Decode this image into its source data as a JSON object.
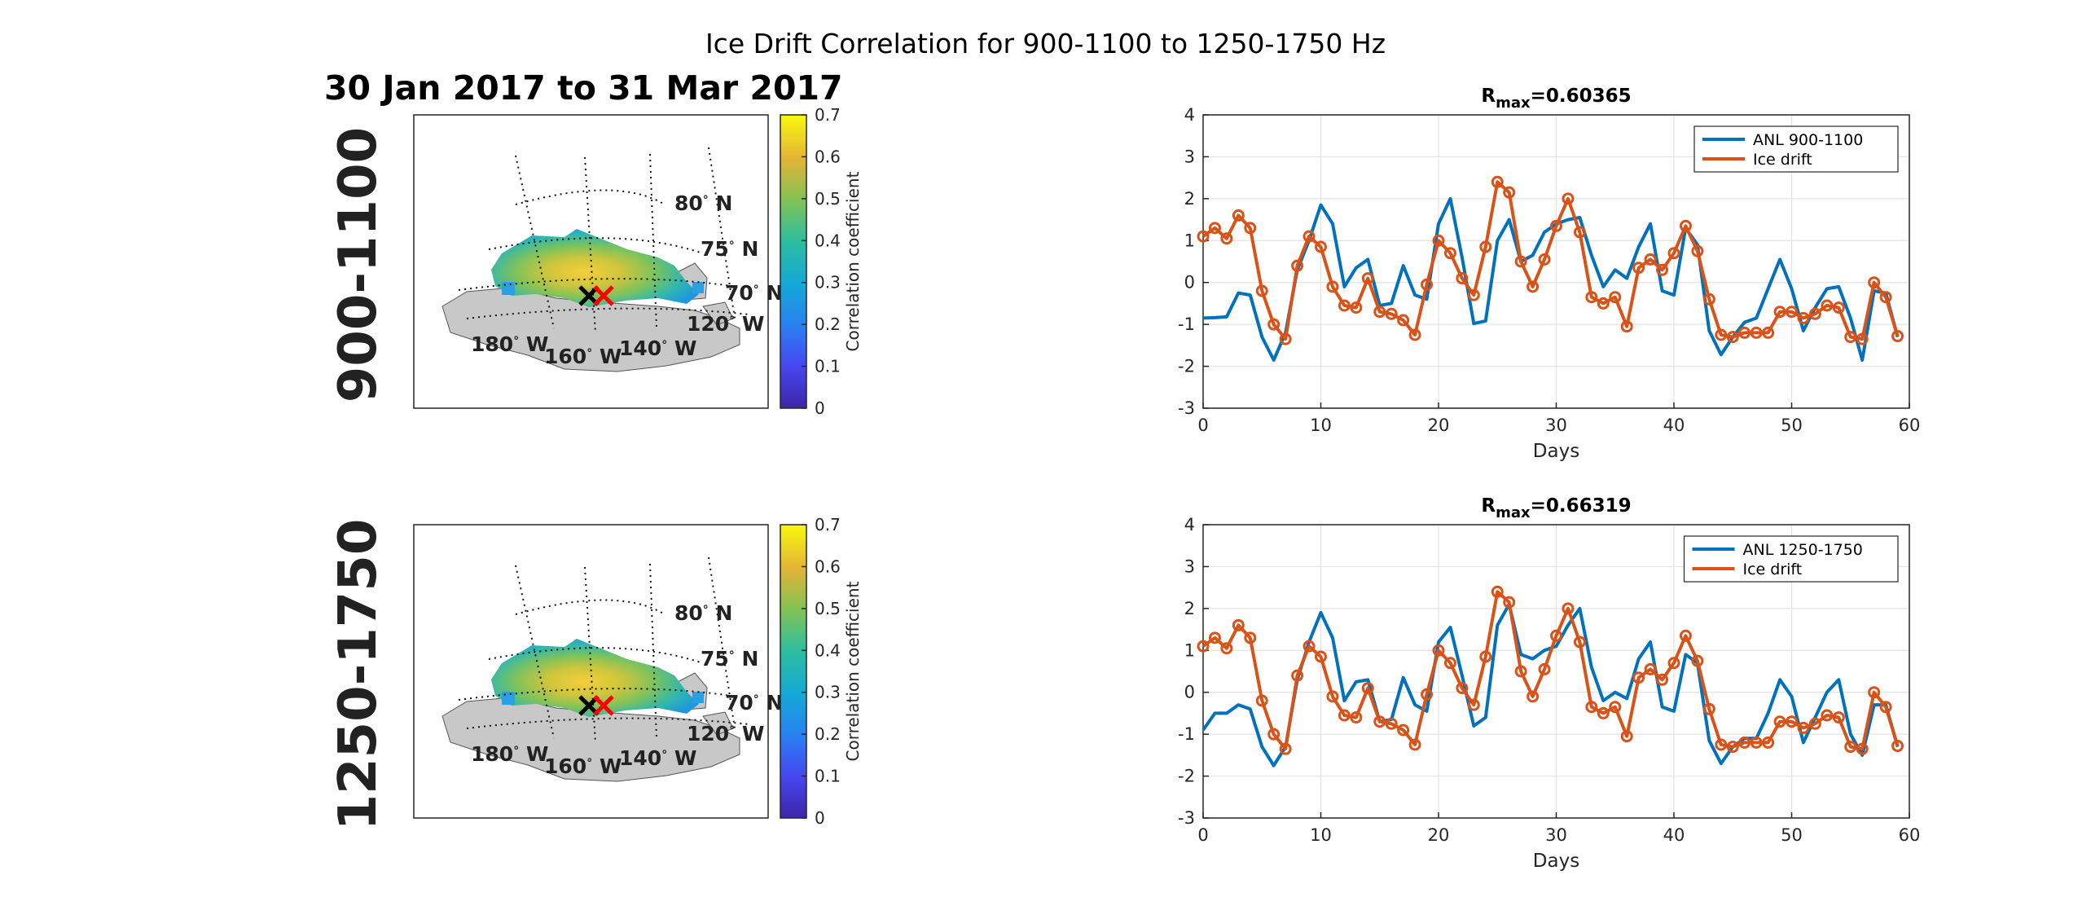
{
  "figure": {
    "suptitle": "Ice Drift Correlation for 900-1100 to 1250-1750 Hz",
    "date_range": "30 Jan 2017 to 31 Mar 2017",
    "row_labels": [
      "900-1100",
      "1250-1750"
    ]
  },
  "maps": {
    "colorbar": {
      "label": "Correlation coefficient",
      "ticks": [
        "0",
        "0.1",
        "0.2",
        "0.3",
        "0.4",
        "0.5",
        "0.6",
        "0.7"
      ],
      "range": [
        0,
        0.7
      ],
      "colormap": "parula"
    },
    "lat_labels": [
      {
        "deg": "80",
        "dir": "N"
      },
      {
        "deg": "75",
        "dir": "N"
      },
      {
        "deg": "70",
        "dir": "N"
      }
    ],
    "lon_labels": [
      {
        "deg": "180",
        "dir": "W"
      },
      {
        "deg": "160",
        "dir": "W"
      },
      {
        "deg": "140",
        "dir": "W"
      },
      {
        "deg": "120",
        "dir": "W"
      }
    ],
    "land_color": "#c8c8c8",
    "marker_colors": {
      "black": "#000000",
      "red": "#ff0000"
    }
  },
  "chart_data": [
    {
      "type": "line",
      "title_prefix": "R",
      "title_sub": "max",
      "title_value": "=0.60365",
      "xlabel": "Days",
      "ylabel": "",
      "xlim": [
        0,
        60
      ],
      "ylim": [
        -3,
        4
      ],
      "xticks": [
        0,
        10,
        20,
        30,
        40,
        50,
        60
      ],
      "yticks": [
        -3,
        -2,
        -1,
        0,
        1,
        2,
        3,
        4
      ],
      "grid": true,
      "legend_position": "top-right",
      "series": [
        {
          "name": "ANL 900-1100",
          "color": "#0072BD",
          "markers": false,
          "x": [
            0,
            1,
            2,
            3,
            4,
            5,
            6,
            7,
            8,
            9,
            10,
            11,
            12,
            13,
            14,
            15,
            16,
            17,
            18,
            19,
            20,
            21,
            22,
            23,
            24,
            25,
            26,
            27,
            28,
            29,
            30,
            31,
            32,
            33,
            34,
            35,
            36,
            37,
            38,
            39,
            40,
            41,
            42,
            43,
            44,
            45,
            46,
            47,
            48,
            49,
            50,
            51,
            52,
            53,
            54,
            55,
            56,
            57,
            58,
            59
          ],
          "y": [
            -0.85,
            -0.84,
            -0.82,
            -0.25,
            -0.3,
            -1.3,
            -1.85,
            -1.2,
            0.3,
            1.0,
            1.85,
            1.4,
            -0.1,
            0.35,
            0.55,
            -0.55,
            -0.5,
            0.4,
            -0.3,
            -0.4,
            1.4,
            2.0,
            0.6,
            -0.98,
            -0.92,
            1.0,
            1.5,
            0.5,
            0.65,
            1.2,
            1.4,
            1.5,
            1.55,
            0.65,
            -0.1,
            0.3,
            0.1,
            0.85,
            1.4,
            -0.2,
            -0.3,
            1.3,
            0.9,
            -1.15,
            -1.72,
            -1.3,
            -0.95,
            -0.85,
            -0.15,
            0.55,
            -0.15,
            -1.15,
            -0.6,
            -0.15,
            -0.1,
            -0.85,
            -1.85,
            -0.2,
            -0.25,
            -1.3
          ]
        },
        {
          "name": "Ice drift",
          "color": "#D95319",
          "markers": true,
          "x": [
            0,
            1,
            2,
            3,
            4,
            5,
            6,
            7,
            8,
            9,
            10,
            11,
            12,
            13,
            14,
            15,
            16,
            17,
            18,
            19,
            20,
            21,
            22,
            23,
            24,
            25,
            26,
            27,
            28,
            29,
            30,
            31,
            32,
            33,
            34,
            35,
            36,
            37,
            38,
            39,
            40,
            41,
            42,
            43,
            44,
            45,
            46,
            47,
            48,
            49,
            50,
            51,
            52,
            53,
            54,
            55,
            56,
            57,
            58,
            59
          ],
          "y": [
            1.1,
            1.3,
            1.05,
            1.6,
            1.3,
            -0.2,
            -1.0,
            -1.35,
            0.4,
            1.1,
            0.85,
            -0.1,
            -0.55,
            -0.6,
            0.1,
            -0.7,
            -0.75,
            -0.9,
            -1.25,
            -0.05,
            1.0,
            0.7,
            0.1,
            -0.3,
            0.85,
            2.4,
            2.15,
            0.5,
            -0.1,
            0.55,
            1.35,
            2.0,
            1.2,
            -0.35,
            -0.5,
            -0.35,
            -1.05,
            0.35,
            0.55,
            0.3,
            0.7,
            1.35,
            0.75,
            -0.4,
            -1.25,
            -1.3,
            -1.2,
            -1.2,
            -1.2,
            -0.7,
            -0.7,
            -0.85,
            -0.75,
            -0.55,
            -0.6,
            -1.3,
            -1.35,
            0.0,
            -0.35,
            -1.28
          ]
        }
      ]
    },
    {
      "type": "line",
      "title_prefix": "R",
      "title_sub": "max",
      "title_value": "=0.66319",
      "xlabel": "Days",
      "ylabel": "",
      "xlim": [
        0,
        60
      ],
      "ylim": [
        -3,
        4
      ],
      "xticks": [
        0,
        10,
        20,
        30,
        40,
        50,
        60
      ],
      "yticks": [
        -3,
        -2,
        -1,
        0,
        1,
        2,
        3,
        4
      ],
      "grid": true,
      "legend_position": "top-right",
      "series": [
        {
          "name": "ANL 1250-1750",
          "color": "#0072BD",
          "markers": false,
          "x": [
            0,
            1,
            2,
            3,
            4,
            5,
            6,
            7,
            8,
            9,
            10,
            11,
            12,
            13,
            14,
            15,
            16,
            17,
            18,
            19,
            20,
            21,
            22,
            23,
            24,
            25,
            26,
            27,
            28,
            29,
            30,
            31,
            32,
            33,
            34,
            35,
            36,
            37,
            38,
            39,
            40,
            41,
            42,
            43,
            44,
            45,
            46,
            47,
            48,
            49,
            50,
            51,
            52,
            53,
            54,
            55,
            56,
            57,
            58,
            59
          ],
          "y": [
            -0.9,
            -0.5,
            -0.5,
            -0.3,
            -0.4,
            -1.3,
            -1.75,
            -1.3,
            0.3,
            1.2,
            1.9,
            1.3,
            -0.2,
            0.25,
            0.3,
            -0.7,
            -0.65,
            0.35,
            -0.3,
            -0.45,
            1.2,
            1.55,
            0.4,
            -0.8,
            -0.6,
            1.6,
            2.1,
            0.9,
            0.8,
            1.0,
            1.1,
            1.6,
            2.0,
            0.6,
            -0.2,
            0.0,
            -0.15,
            0.8,
            1.2,
            -0.35,
            -0.45,
            0.9,
            0.7,
            -1.15,
            -1.7,
            -1.3,
            -1.1,
            -1.1,
            -0.5,
            0.3,
            -0.1,
            -1.2,
            -0.6,
            0.0,
            0.3,
            -1.0,
            -1.5,
            -0.3,
            -0.3,
            -1.3
          ]
        },
        {
          "name": "Ice drift",
          "color": "#D95319",
          "markers": true,
          "x": [
            0,
            1,
            2,
            3,
            4,
            5,
            6,
            7,
            8,
            9,
            10,
            11,
            12,
            13,
            14,
            15,
            16,
            17,
            18,
            19,
            20,
            21,
            22,
            23,
            24,
            25,
            26,
            27,
            28,
            29,
            30,
            31,
            32,
            33,
            34,
            35,
            36,
            37,
            38,
            39,
            40,
            41,
            42,
            43,
            44,
            45,
            46,
            47,
            48,
            49,
            50,
            51,
            52,
            53,
            54,
            55,
            56,
            57,
            58,
            59
          ],
          "y": [
            1.1,
            1.3,
            1.05,
            1.6,
            1.3,
            -0.2,
            -1.0,
            -1.35,
            0.4,
            1.1,
            0.85,
            -0.1,
            -0.55,
            -0.6,
            0.1,
            -0.7,
            -0.75,
            -0.9,
            -1.25,
            -0.05,
            1.0,
            0.7,
            0.1,
            -0.3,
            0.85,
            2.4,
            2.15,
            0.5,
            -0.1,
            0.55,
            1.35,
            2.0,
            1.2,
            -0.35,
            -0.5,
            -0.35,
            -1.05,
            0.35,
            0.55,
            0.3,
            0.7,
            1.35,
            0.75,
            -0.4,
            -1.25,
            -1.3,
            -1.2,
            -1.2,
            -1.2,
            -0.7,
            -0.7,
            -0.85,
            -0.75,
            -0.55,
            -0.6,
            -1.3,
            -1.35,
            0.0,
            -0.35,
            -1.28
          ]
        }
      ]
    }
  ]
}
